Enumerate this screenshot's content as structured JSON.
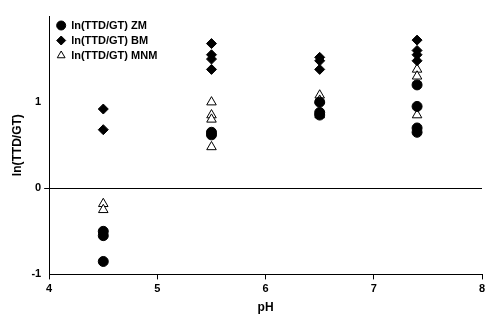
{
  "chart_data": {
    "type": "scatter",
    "x_label": "pH",
    "y_label": "ln(TTD/GT)",
    "xlim": [
      4,
      8
    ],
    "xticks": [
      4,
      5,
      6,
      7,
      8
    ],
    "ylim": [
      -1,
      2
    ],
    "yticks": [
      -1,
      0,
      1
    ],
    "grid": false,
    "legend": "top-left",
    "series": [
      {
        "name": "ln(TTD/GT) ZM",
        "color": "#000000",
        "marker": "circle",
        "x": [
          4.5,
          4.5,
          4.5,
          5.5,
          5.5,
          6.5,
          6.5,
          6.5,
          7.4,
          7.4,
          7.4,
          7.4
        ],
        "values": [
          -0.5,
          -0.55,
          -0.85,
          0.65,
          0.62,
          1.0,
          0.88,
          0.85,
          1.2,
          0.95,
          0.7,
          0.65
        ]
      },
      {
        "name": "ln(TTD/GT) BM",
        "color": "#000000",
        "marker": "diamond",
        "x": [
          4.5,
          4.5,
          5.5,
          5.5,
          5.5,
          5.5,
          6.5,
          6.5,
          6.5,
          7.4,
          7.4,
          7.4,
          7.4
        ],
        "values": [
          0.92,
          0.68,
          1.68,
          1.55,
          1.5,
          1.38,
          1.52,
          1.48,
          1.38,
          1.72,
          1.6,
          1.55,
          1.48
        ]
      },
      {
        "name": "ln(TTD/GT) MNM",
        "color": "#000000",
        "marker": "open_triangle",
        "x": [
          4.5,
          4.5,
          5.5,
          5.5,
          5.5,
          5.5,
          6.5,
          6.5,
          6.5,
          7.4,
          7.4,
          7.4
        ],
        "values": [
          -0.18,
          -0.25,
          1.0,
          0.85,
          0.8,
          0.48,
          1.08,
          1.02,
          0.85,
          1.38,
          1.3,
          0.85
        ]
      }
    ]
  }
}
